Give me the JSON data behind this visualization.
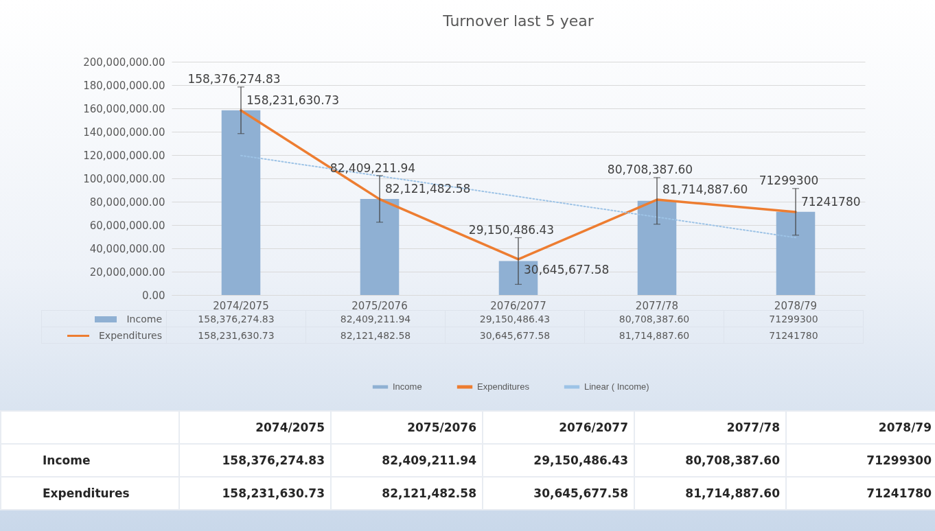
{
  "chart_data": {
    "type": "bar",
    "title": "Turnover last 5 year",
    "categories": [
      "2074/2075",
      "2075/2076",
      "2076/2077",
      "2077/78",
      "2078/79"
    ],
    "series": [
      {
        "name": "Income",
        "color": "#8fb0d3",
        "values": [
          158376274.83,
          82409211.94,
          29150486.43,
          80708387.6,
          71299300
        ],
        "errors": [
          20000000,
          20000000,
          20000000,
          20000000,
          20000000
        ],
        "value_labels": [
          "158,376,274.83",
          "82,409,211.94",
          "29,150,486.43",
          "80,708,387.60",
          "71299300"
        ]
      },
      {
        "name": "Expenditures",
        "type": "line",
        "color": "#ed7d31",
        "values": [
          158231630.73,
          82121482.58,
          30645677.58,
          81714887.6,
          71241780
        ],
        "value_labels": [
          "158,231,630.73",
          "82,121,482.58",
          "30,645,677.58",
          "81,714,887.60",
          "71241780"
        ]
      },
      {
        "name": "Linear ( Income)",
        "type": "line",
        "color": "#9dc3e6",
        "line_style": "dotted",
        "x": [
          "2074/2075",
          "2078/79"
        ],
        "values": [
          119600000,
          49200000
        ]
      }
    ],
    "ylim": [
      0,
      200000000
    ],
    "yticks": [
      {
        "value": 0,
        "label": "0.00"
      },
      {
        "value": 20000000,
        "label": "20,000,000.00"
      },
      {
        "value": 40000000,
        "label": "40,000,000.00"
      },
      {
        "value": 60000000,
        "label": "60,000,000.00"
      },
      {
        "value": 80000000,
        "label": "80,000,000.00"
      },
      {
        "value": 100000000,
        "label": "100,000,000.00"
      },
      {
        "value": 120000000,
        "label": "120,000,000.00"
      },
      {
        "value": 140000000,
        "label": "140,000,000.00"
      },
      {
        "value": 160000000,
        "label": "160,000,000.00"
      },
      {
        "value": 180000000,
        "label": "180,000,000.00"
      },
      {
        "value": 200000000,
        "label": "200,000,000.00"
      }
    ],
    "grid": "y",
    "legend": "bottom"
  }
}
